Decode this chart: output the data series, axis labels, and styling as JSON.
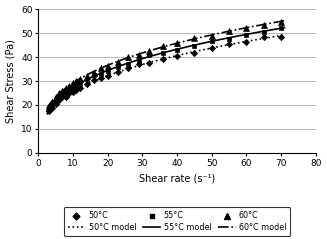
{
  "xlabel": "Shear rate (s⁻¹)",
  "ylabel": "Shear Stress (Pa)",
  "xlim": [
    0,
    80
  ],
  "ylim": [
    0,
    60
  ],
  "xticks": [
    0,
    10,
    20,
    30,
    40,
    50,
    60,
    70,
    80
  ],
  "yticks": [
    0,
    10,
    20,
    30,
    40,
    50,
    60
  ],
  "color": "black",
  "bg_color": "white",
  "K50": 11.8,
  "n50": 0.335,
  "K55": 12.8,
  "n55": 0.33,
  "K60": 13.8,
  "n60": 0.325,
  "gamma_exp": [
    3,
    4,
    5,
    6,
    7,
    8,
    9,
    10,
    11,
    12,
    14,
    16,
    18,
    20,
    23,
    26,
    29,
    32,
    36,
    40,
    45,
    50,
    55,
    60,
    65,
    70
  ],
  "noise_seed": 0,
  "noise_scale": 0.3
}
